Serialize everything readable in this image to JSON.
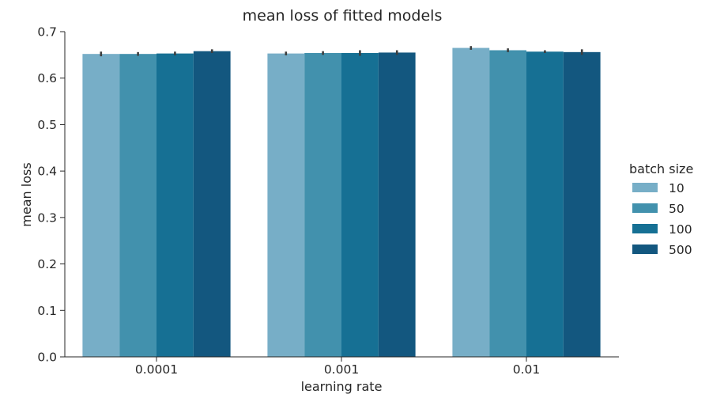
{
  "chart_data": {
    "type": "bar",
    "title": "mean loss of fitted models",
    "xlabel": "learning rate",
    "ylabel": "mean loss",
    "categories": [
      "0.0001",
      "0.001",
      "0.01"
    ],
    "ylim": [
      0,
      0.7
    ],
    "yticks": [
      0.0,
      0.1,
      0.2,
      0.3,
      0.4,
      0.5,
      0.6,
      0.7
    ],
    "ytick_labels": [
      "0.0",
      "0.1",
      "0.2",
      "0.3",
      "0.4",
      "0.5",
      "0.6",
      "0.7"
    ],
    "grid": false,
    "legend": {
      "title": "batch size",
      "position": "right"
    },
    "series": [
      {
        "name": "10",
        "color": "#77aec7",
        "values": [
          0.652,
          0.653,
          0.665
        ],
        "errors": [
          0.005,
          0.004,
          0.004
        ]
      },
      {
        "name": "50",
        "color": "#4291ad",
        "values": [
          0.652,
          0.654,
          0.66
        ],
        "errors": [
          0.004,
          0.004,
          0.004
        ]
      },
      {
        "name": "100",
        "color": "#167094",
        "values": [
          0.653,
          0.654,
          0.657
        ],
        "errors": [
          0.004,
          0.006,
          0.003
        ]
      },
      {
        "name": "500",
        "color": "#13577f",
        "values": [
          0.658,
          0.655,
          0.656
        ],
        "errors": [
          0.004,
          0.005,
          0.006
        ]
      }
    ]
  }
}
